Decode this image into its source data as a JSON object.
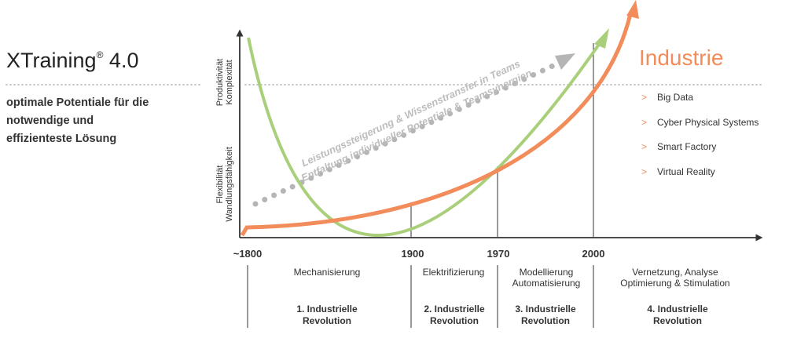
{
  "heading": {
    "title": "XTraining",
    "mark": "®",
    "version": "4.0",
    "subtitle": [
      "optimale Potentiale für die",
      "notwendige und",
      "effizienteste Lösung"
    ]
  },
  "industrie": {
    "title": "Industrie",
    "items": [
      "Big Data",
      "Cyber Physical Systems",
      "Smart Factory",
      "Virtual Reality"
    ]
  },
  "axes": {
    "y_top": [
      "Produktivität",
      "Komplexität"
    ],
    "y_bottom": [
      "Flexibilität",
      "Wandlungsfähigkeit"
    ]
  },
  "diagonal": {
    "line1": "Leistungssteigerung & Wissenstransfer in Teams",
    "line2": "Entfaltung individueller Potentiale & Teamsynergien"
  },
  "timeline": {
    "years": [
      "~1800",
      "1900",
      "1970",
      "2000"
    ],
    "eras": [
      {
        "topics": [
          "Mechanisierung"
        ],
        "revolution": [
          "1. Industrielle",
          "Revolution"
        ]
      },
      {
        "topics": [
          "Elektrifizierung"
        ],
        "revolution": [
          "2. Industrielle",
          "Revolution"
        ]
      },
      {
        "topics": [
          "Modellierung",
          "Automatisierung"
        ],
        "revolution": [
          "3. Industrielle",
          "Revolution"
        ]
      },
      {
        "topics": [
          "Vernetzung, Analyse",
          "Optimierung & Stimulation"
        ],
        "revolution": [
          "4. Industrielle",
          "Revolution"
        ]
      }
    ]
  },
  "colors": {
    "orange": "#f28c5a",
    "green": "#a9cf7b",
    "gray": "#b5b5b5",
    "axis": "#333333"
  }
}
